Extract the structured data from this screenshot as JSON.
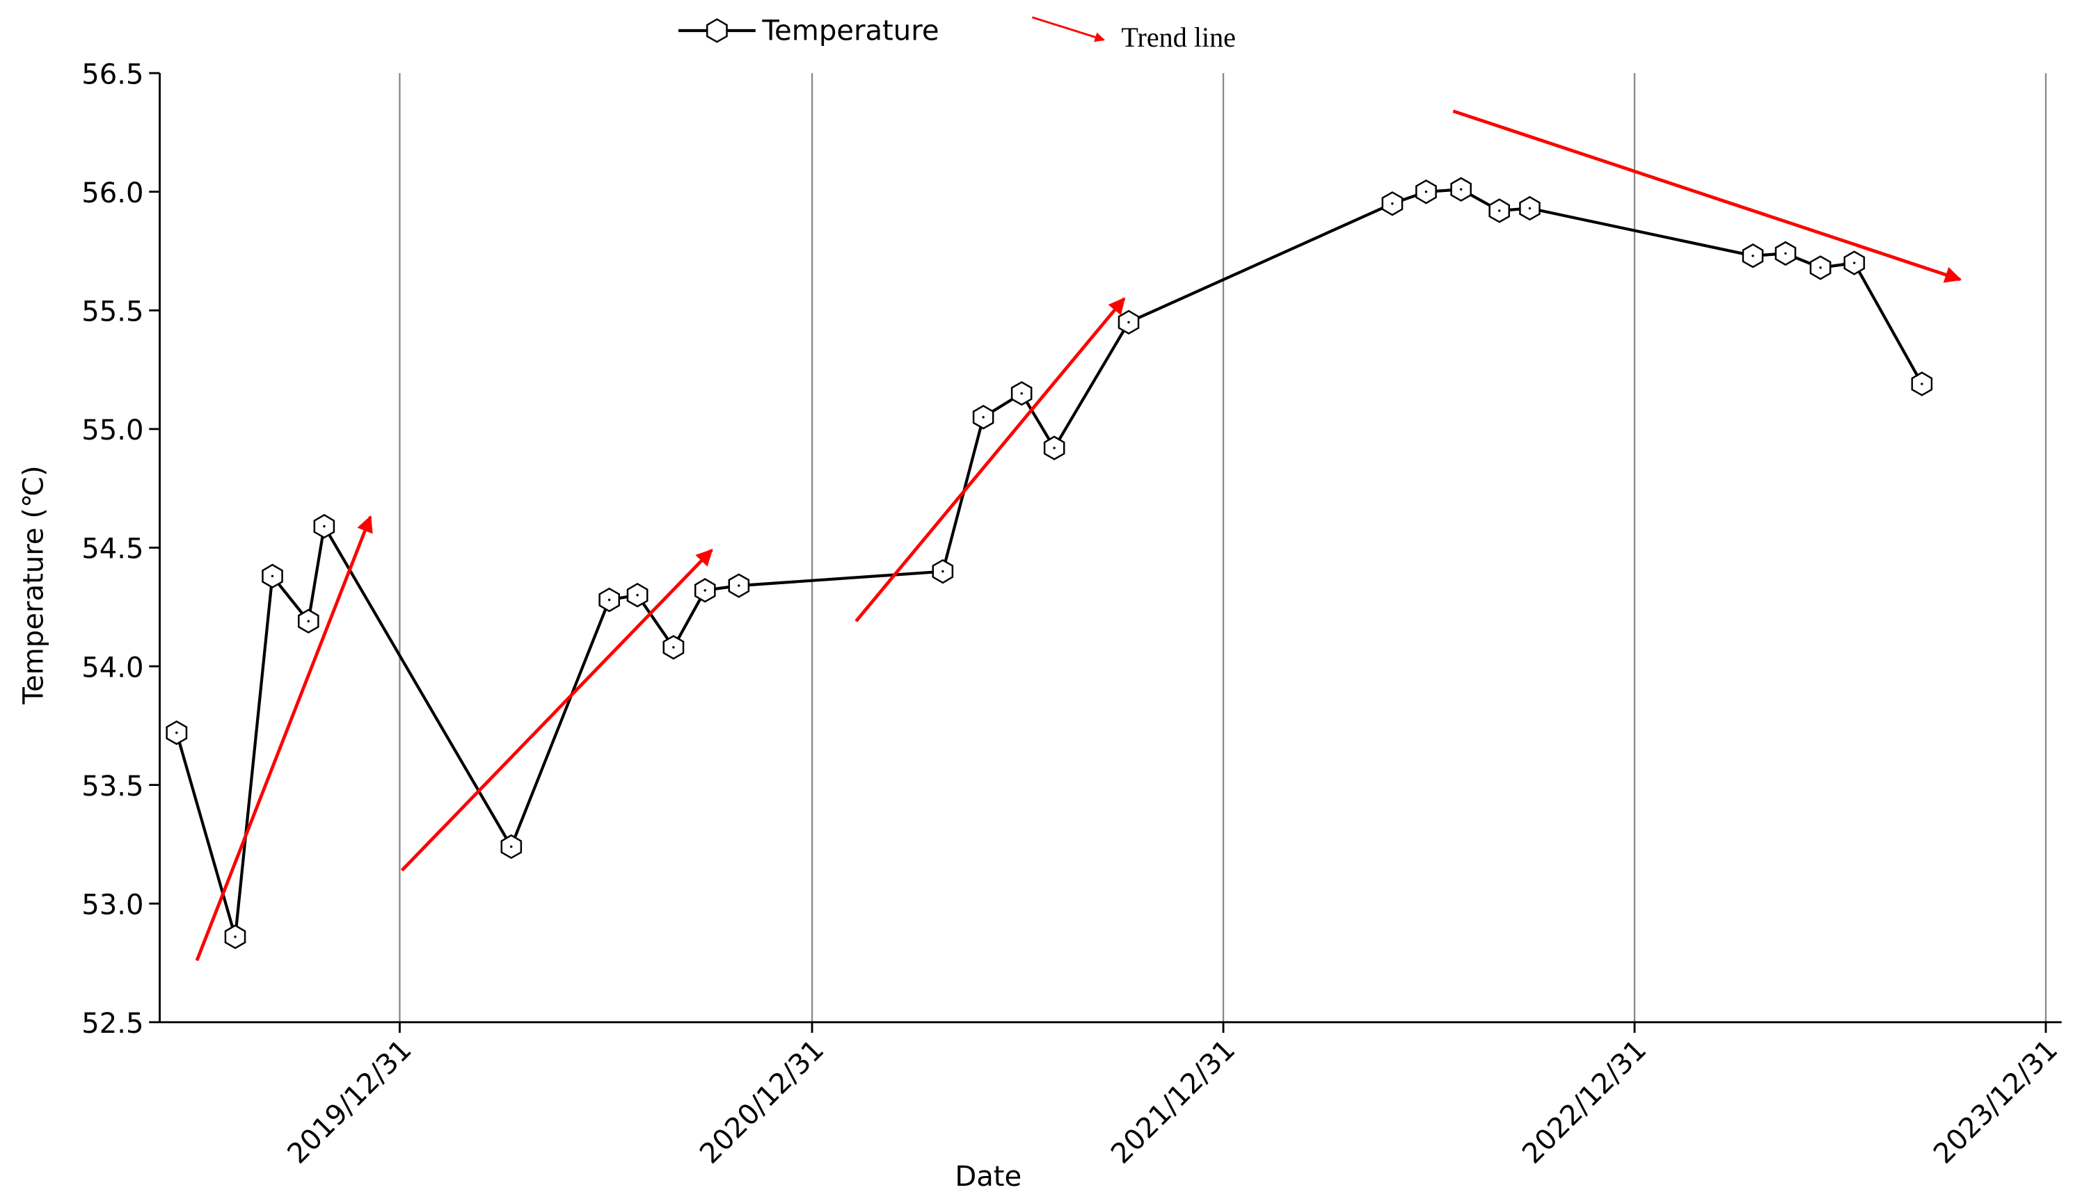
{
  "chart_data": {
    "type": "line",
    "x_label": "Date",
    "y_label": "Temperature (℃)",
    "xlim": [
      "2019/06/01",
      "2024/01/14"
    ],
    "xticks": [
      "2019/12/31",
      "2020/12/31",
      "2021/12/31",
      "2022/12/31",
      "2023/12/31"
    ],
    "ylim": [
      52.5,
      56.5
    ],
    "yticks": [
      52.5,
      {
        "value": 53,
        "label": "53.0"
      },
      53.5,
      {
        "value": 54,
        "label": "54.0"
      },
      54.5,
      {
        "value": 55,
        "label": "55.0"
      },
      55.5,
      {
        "value": 56,
        "label": "56.0"
      },
      56.5
    ],
    "grid": "x",
    "legend": "top",
    "series": [
      {
        "name": "Temperature",
        "color": "#000000",
        "x": [
          "2019/06/16",
          "2019/08/07",
          "2019/09/09",
          "2019/10/11",
          "2019/10/25",
          "2020/04/08",
          "2020/07/04",
          "2020/07/29",
          "2020/08/30",
          "2020/09/27",
          "2020/10/27",
          "2021/04/26",
          "2021/06/01",
          "2021/07/05",
          "2021/08/03",
          "2021/10/08",
          "2022/05/30",
          "2022/06/29",
          "2022/07/30",
          "2022/09/02",
          "2022/09/29",
          "2023/04/15",
          "2023/05/14",
          "2023/06/14",
          "2023/07/14",
          "2023/09/12"
        ],
        "values": [
          53.72,
          52.86,
          54.38,
          54.19,
          54.59,
          53.24,
          54.28,
          54.3,
          54.08,
          54.32,
          54.34,
          54.4,
          55.05,
          55.15,
          54.92,
          55.45,
          55.95,
          56.0,
          56.01,
          55.92,
          55.93,
          55.73,
          55.74,
          55.68,
          55.7,
          55.19
        ]
      },
      {
        "name": "Trend line",
        "color": "#ff0000",
        "segments": [
          {
            "x": [
              "2019/07/04",
              "2019/12/05"
            ],
            "values": [
              52.76,
              54.63
            ]
          },
          {
            "x": [
              "2020/01/02",
              "2020/10/03"
            ],
            "values": [
              53.14,
              54.49
            ]
          },
          {
            "x": [
              "2021/02/08",
              "2021/10/04"
            ],
            "values": [
              54.19,
              55.55
            ]
          },
          {
            "x": [
              "2022/07/23",
              "2023/10/16"
            ],
            "values": [
              56.34,
              55.63
            ]
          }
        ]
      }
    ]
  }
}
